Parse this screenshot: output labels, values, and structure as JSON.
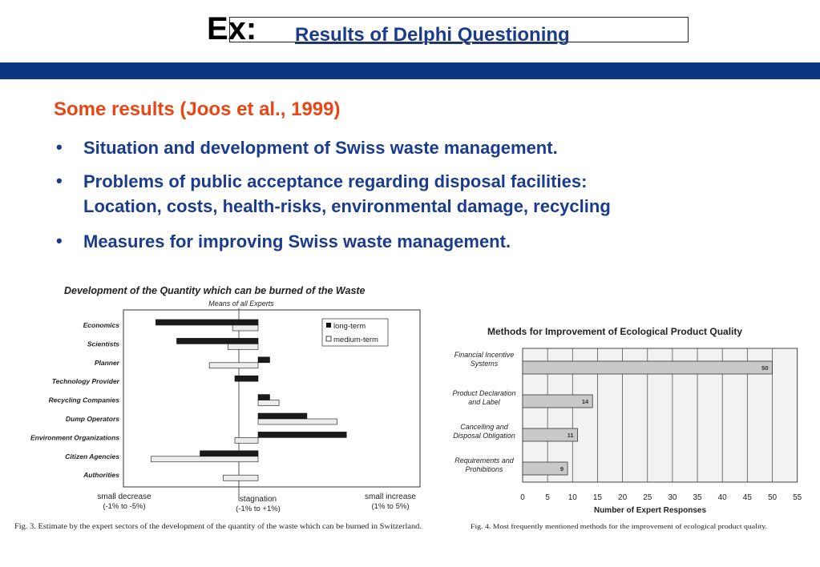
{
  "header": {
    "ex": "Ex:",
    "title": "Results of Delphi Questioning"
  },
  "subheading": "Some results (Joos et al., 1999)",
  "bullets": [
    "Situation and development of Swiss waste management.",
    "Problems of public acceptance regarding disposal facilities:",
    "Location, costs, health-risks, environmental damage, recycling",
    "Measures for improving Swiss waste management."
  ],
  "colors": {
    "band": "#0d3580",
    "heading": "#e84614",
    "text": "#1b3c8c"
  },
  "chart_data": [
    {
      "type": "bar",
      "title": "Development of the Quantity which can be burned of the Waste",
      "subtitle": "Means of all Experts",
      "categories": [
        "Economics",
        "Scientists",
        "Planner",
        "Technology Provider",
        "Recycling Companies",
        "Dump Operators",
        "Environment Organizations",
        "Citizen Agencies",
        "Authorities"
      ],
      "series": [
        {
          "name": "long-term",
          "values": [
            -4.4,
            -3.5,
            0.5,
            -1.0,
            0.5,
            2.1,
            3.8,
            -2.5,
            0.0
          ]
        },
        {
          "name": "medium-term",
          "values": [
            -1.1,
            -1.3,
            -2.1,
            0.0,
            0.9,
            3.4,
            -1.0,
            -4.6,
            -1.5
          ]
        }
      ],
      "xlim": [
        -5,
        5
      ],
      "legend": "top-right",
      "xlabels": {
        "left_main": "small decrease",
        "left_sub": "(-1% to -5%)",
        "center_main": "stagnation",
        "center_sub": "(-1% to +1%)",
        "right_main": "small increase",
        "right_sub": "(1% to 5%)"
      },
      "caption": "Fig. 3.  Estimate by the expert sectors of the development of the quantity of the waste which can be burned in Switzerland."
    },
    {
      "type": "bar",
      "title": "Methods for Improvement of Ecological Product Quality",
      "categories": [
        [
          "Financial Incentive",
          "Systems"
        ],
        [
          "Product Declaration",
          "and Label"
        ],
        [
          "Cancelling and",
          "Disposal Obligation"
        ],
        [
          "Requirements and",
          "Prohibitions"
        ]
      ],
      "values": [
        50,
        14,
        11,
        9
      ],
      "xticks": [
        0,
        5,
        10,
        15,
        20,
        25,
        30,
        35,
        40,
        45,
        50,
        55
      ],
      "xlim": [
        0,
        55
      ],
      "xlabel": "Number of Expert Responses",
      "caption": "Fig. 4.  Most frequently mentioned methods for the improvement of ecological product quality."
    }
  ]
}
